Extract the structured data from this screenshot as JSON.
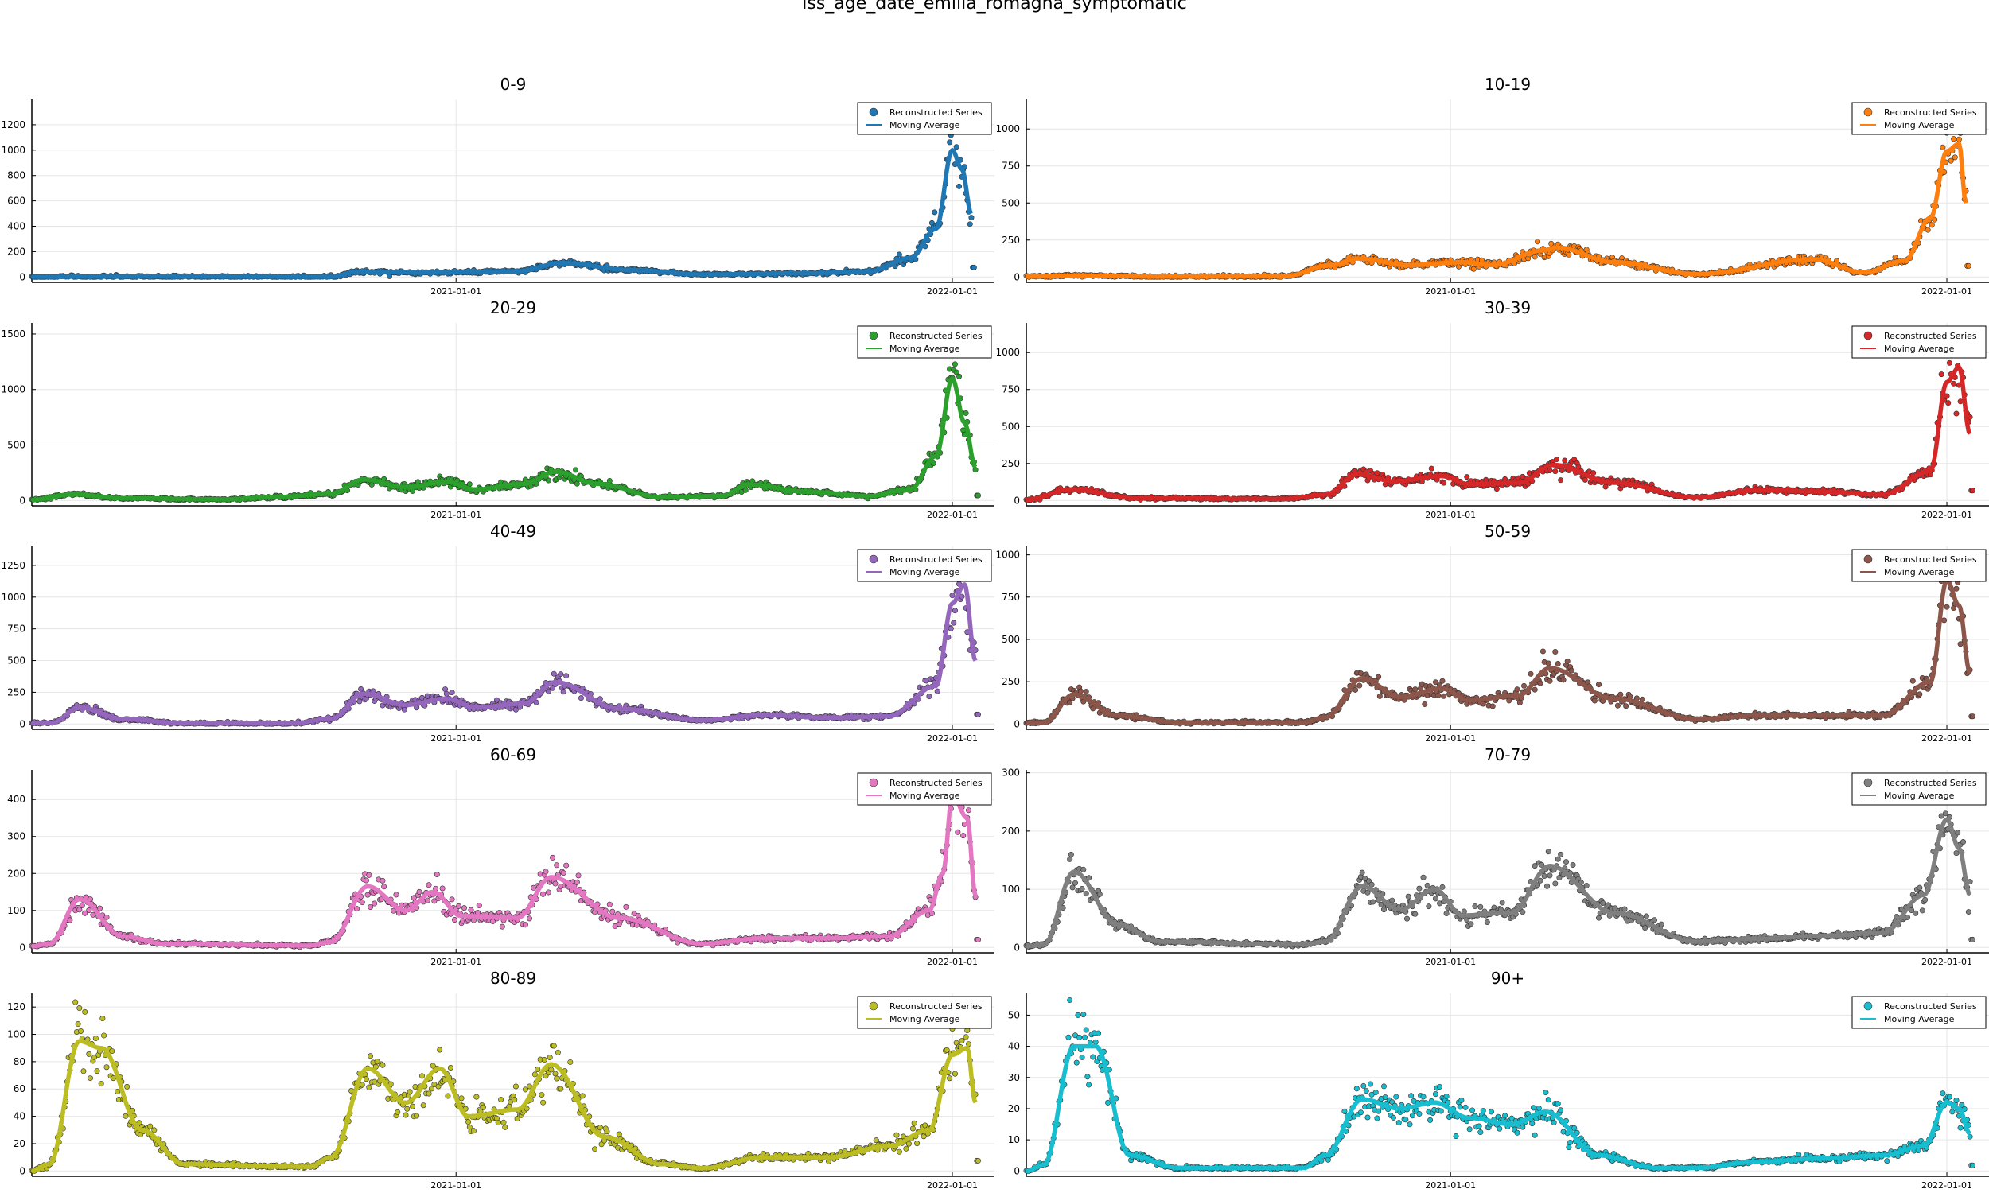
{
  "figure": {
    "title": "iss_age_date_emilia_romagna_symptomatic"
  },
  "chart_data": [
    {
      "type": "scatter+line",
      "title": "0-9",
      "color": "#1f77b4",
      "y_max": 1400,
      "y_ticks": [
        0,
        200,
        400,
        600,
        800,
        1000,
        1200
      ],
      "x_range": [
        "2020-02-24",
        "2022-02-01"
      ],
      "x_ticks": [
        "2021-01-01",
        "2022-01-01"
      ],
      "legend": {
        "position": "top-right",
        "entries": [
          "Reconstructed Series",
          "Moving Average"
        ]
      },
      "series_profile": [
        [
          "2020-02-24",
          2
        ],
        [
          "2020-06-01",
          3
        ],
        [
          "2020-10-01",
          2
        ],
        [
          "2020-10-20",
          40
        ],
        [
          "2020-12-15",
          35
        ],
        [
          "2021-02-15",
          45
        ],
        [
          "2021-03-20",
          110
        ],
        [
          "2021-05-10",
          55
        ],
        [
          "2021-07-01",
          20
        ],
        [
          "2021-09-20",
          30
        ],
        [
          "2021-11-01",
          45
        ],
        [
          "2021-12-01",
          150
        ],
        [
          "2021-12-20",
          380
        ],
        [
          "2022-01-01",
          1000
        ],
        [
          "2022-01-08",
          850
        ],
        [
          "2022-01-15",
          500
        ]
      ]
    },
    {
      "type": "scatter+line",
      "title": "10-19",
      "color": "#ff7f0e",
      "y_max": 1200,
      "y_ticks": [
        0,
        250,
        500,
        750,
        1000
      ],
      "x_range": [
        "2020-02-24",
        "2022-02-01"
      ],
      "x_ticks": [
        "2021-01-01",
        "2022-01-01"
      ],
      "legend": {
        "position": "top-right",
        "entries": [
          "Reconstructed Series",
          "Moving Average"
        ]
      },
      "series_profile": [
        [
          "2020-02-24",
          3
        ],
        [
          "2020-04-01",
          10
        ],
        [
          "2020-06-01",
          3
        ],
        [
          "2020-09-01",
          5
        ],
        [
          "2020-10-05",
          80
        ],
        [
          "2020-10-25",
          125
        ],
        [
          "2020-12-01",
          80
        ],
        [
          "2021-01-10",
          100
        ],
        [
          "2021-02-01",
          80
        ],
        [
          "2021-03-10",
          180
        ],
        [
          "2021-03-20",
          200
        ],
        [
          "2021-05-01",
          100
        ],
        [
          "2021-07-01",
          20
        ],
        [
          "2021-09-25",
          120
        ],
        [
          "2021-11-01",
          30
        ],
        [
          "2021-12-01",
          110
        ],
        [
          "2021-12-20",
          400
        ],
        [
          "2022-01-01",
          850
        ],
        [
          "2022-01-10",
          900
        ],
        [
          "2022-01-15",
          500
        ]
      ]
    },
    {
      "type": "scatter+line",
      "title": "20-29",
      "color": "#2ca02c",
      "y_max": 1600,
      "y_ticks": [
        0,
        500,
        1000,
        1500
      ],
      "x_range": [
        "2020-02-24",
        "2022-02-01"
      ],
      "x_ticks": [
        "2021-01-01",
        "2022-01-01"
      ],
      "legend": {
        "position": "top-right",
        "entries": [
          "Reconstructed Series",
          "Moving Average"
        ]
      },
      "series_profile": [
        [
          "2020-02-24",
          5
        ],
        [
          "2020-03-25",
          55
        ],
        [
          "2020-05-01",
          20
        ],
        [
          "2020-07-15",
          10
        ],
        [
          "2020-08-20",
          30
        ],
        [
          "2020-10-01",
          60
        ],
        [
          "2020-10-25",
          190
        ],
        [
          "2020-11-25",
          120
        ],
        [
          "2020-12-25",
          170
        ],
        [
          "2021-01-15",
          100
        ],
        [
          "2021-02-20",
          150
        ],
        [
          "2021-03-15",
          260
        ],
        [
          "2021-04-15",
          150
        ],
        [
          "2021-06-01",
          30
        ],
        [
          "2021-07-15",
          40
        ],
        [
          "2021-08-05",
          145
        ],
        [
          "2021-09-15",
          80
        ],
        [
          "2021-11-01",
          40
        ],
        [
          "2021-12-01",
          100
        ],
        [
          "2021-12-20",
          400
        ],
        [
          "2022-01-01",
          1100
        ],
        [
          "2022-01-10",
          700
        ],
        [
          "2022-01-18",
          300
        ]
      ]
    },
    {
      "type": "scatter+line",
      "title": "30-39",
      "color": "#d62728",
      "y_max": 1200,
      "y_ticks": [
        0,
        250,
        500,
        750,
        1000
      ],
      "x_range": [
        "2020-02-24",
        "2022-02-01"
      ],
      "x_ticks": [
        "2021-01-01",
        "2022-01-01"
      ],
      "legend": {
        "position": "top-right",
        "entries": [
          "Reconstructed Series",
          "Moving Average"
        ]
      },
      "series_profile": [
        [
          "2020-02-24",
          5
        ],
        [
          "2020-03-28",
          75
        ],
        [
          "2020-05-15",
          15
        ],
        [
          "2020-09-01",
          10
        ],
        [
          "2020-10-01",
          40
        ],
        [
          "2020-10-25",
          180
        ],
        [
          "2020-11-20",
          130
        ],
        [
          "2020-12-25",
          165
        ],
        [
          "2021-01-15",
          110
        ],
        [
          "2021-02-20",
          120
        ],
        [
          "2021-03-18",
          240
        ],
        [
          "2021-05-01",
          120
        ],
        [
          "2021-07-01",
          20
        ],
        [
          "2021-08-15",
          70
        ],
        [
          "2021-10-01",
          60
        ],
        [
          "2021-11-15",
          40
        ],
        [
          "2021-12-20",
          200
        ],
        [
          "2022-01-01",
          800
        ],
        [
          "2022-01-10",
          900
        ],
        [
          "2022-01-18",
          450
        ]
      ]
    },
    {
      "type": "scatter+line",
      "title": "40-49",
      "color": "#9467bd",
      "y_max": 1400,
      "y_ticks": [
        0,
        250,
        500,
        750,
        1000,
        1250
      ],
      "x_range": [
        "2020-02-24",
        "2022-02-01"
      ],
      "x_ticks": [
        "2021-01-01",
        "2022-01-01"
      ],
      "legend": {
        "position": "top-right",
        "entries": [
          "Reconstructed Series",
          "Moving Average"
        ]
      },
      "series_profile": [
        [
          "2020-02-24",
          5
        ],
        [
          "2020-03-10",
          10
        ],
        [
          "2020-03-30",
          130
        ],
        [
          "2020-05-01",
          40
        ],
        [
          "2020-06-15",
          5
        ],
        [
          "2020-09-01",
          5
        ],
        [
          "2020-10-01",
          40
        ],
        [
          "2020-10-25",
          240
        ],
        [
          "2020-11-25",
          150
        ],
        [
          "2020-12-25",
          200
        ],
        [
          "2021-01-15",
          130
        ],
        [
          "2021-02-20",
          160
        ],
        [
          "2021-03-15",
          330
        ],
        [
          "2021-05-01",
          120
        ],
        [
          "2021-07-01",
          30
        ],
        [
          "2021-08-15",
          70
        ],
        [
          "2021-10-01",
          50
        ],
        [
          "2021-11-15",
          60
        ],
        [
          "2021-12-20",
          300
        ],
        [
          "2022-01-01",
          950
        ],
        [
          "2022-01-10",
          1100
        ],
        [
          "2022-01-18",
          500
        ]
      ]
    },
    {
      "type": "scatter+line",
      "title": "50-59",
      "color": "#8c564b",
      "y_max": 1050,
      "y_ticks": [
        0,
        250,
        500,
        750,
        1000
      ],
      "x_range": [
        "2020-02-24",
        "2022-02-01"
      ],
      "x_ticks": [
        "2021-01-01",
        "2022-01-01"
      ],
      "legend": {
        "position": "top-right",
        "entries": [
          "Reconstructed Series",
          "Moving Average"
        ]
      },
      "series_profile": [
        [
          "2020-02-24",
          5
        ],
        [
          "2020-03-08",
          10
        ],
        [
          "2020-03-30",
          175
        ],
        [
          "2020-05-01",
          50
        ],
        [
          "2020-06-15",
          10
        ],
        [
          "2020-09-15",
          10
        ],
        [
          "2020-10-01",
          40
        ],
        [
          "2020-10-28",
          270
        ],
        [
          "2020-11-25",
          160
        ],
        [
          "2020-12-25",
          210
        ],
        [
          "2021-01-15",
          140
        ],
        [
          "2021-02-20",
          170
        ],
        [
          "2021-03-15",
          330
        ],
        [
          "2021-05-01",
          150
        ],
        [
          "2021-07-01",
          30
        ],
        [
          "2021-08-15",
          50
        ],
        [
          "2021-10-01",
          50
        ],
        [
          "2021-11-15",
          50
        ],
        [
          "2021-12-20",
          250
        ],
        [
          "2022-01-01",
          850
        ],
        [
          "2022-01-10",
          700
        ],
        [
          "2022-01-18",
          300
        ]
      ]
    },
    {
      "type": "scatter+line",
      "title": "60-69",
      "color": "#e377c2",
      "y_max": 480,
      "y_ticks": [
        0,
        100,
        200,
        300,
        400
      ],
      "x_range": [
        "2020-02-24",
        "2022-02-01"
      ],
      "x_ticks": [
        "2021-01-01",
        "2022-01-01"
      ],
      "legend": {
        "position": "top-right",
        "entries": [
          "Reconstructed Series",
          "Moving Average"
        ]
      },
      "series_profile": [
        [
          "2020-02-24",
          3
        ],
        [
          "2020-03-08",
          10
        ],
        [
          "2020-03-30",
          130
        ],
        [
          "2020-05-01",
          30
        ],
        [
          "2020-06-01",
          10
        ],
        [
          "2020-09-15",
          5
        ],
        [
          "2020-10-01",
          15
        ],
        [
          "2020-10-28",
          165
        ],
        [
          "2020-11-25",
          100
        ],
        [
          "2020-12-15",
          150
        ],
        [
          "2021-01-05",
          85
        ],
        [
          "2021-02-15",
          80
        ],
        [
          "2021-03-12",
          190
        ],
        [
          "2021-05-01",
          80
        ],
        [
          "2021-07-01",
          10
        ],
        [
          "2021-08-15",
          25
        ],
        [
          "2021-10-01",
          25
        ],
        [
          "2021-11-15",
          30
        ],
        [
          "2021-12-15",
          100
        ],
        [
          "2021-12-25",
          200
        ],
        [
          "2022-01-01",
          410
        ],
        [
          "2022-01-12",
          350
        ],
        [
          "2022-01-18",
          140
        ]
      ]
    },
    {
      "type": "scatter+line",
      "title": "70-79",
      "color": "#7f7f7f",
      "y_max": 305,
      "y_ticks": [
        0,
        100,
        200,
        300
      ],
      "x_range": [
        "2020-02-24",
        "2022-02-01"
      ],
      "x_ticks": [
        "2021-01-01",
        "2022-01-01"
      ],
      "legend": {
        "position": "top-right",
        "entries": [
          "Reconstructed Series",
          "Moving Average"
        ]
      },
      "series_profile": [
        [
          "2020-02-24",
          2
        ],
        [
          "2020-03-08",
          5
        ],
        [
          "2020-03-30",
          130
        ],
        [
          "2020-05-01",
          40
        ],
        [
          "2020-06-01",
          10
        ],
        [
          "2020-09-15",
          5
        ],
        [
          "2020-10-01",
          10
        ],
        [
          "2020-10-28",
          105
        ],
        [
          "2020-11-25",
          65
        ],
        [
          "2020-12-20",
          100
        ],
        [
          "2021-01-10",
          55
        ],
        [
          "2021-02-15",
          60
        ],
        [
          "2021-03-15",
          140
        ],
        [
          "2021-05-01",
          60
        ],
        [
          "2021-07-01",
          10
        ],
        [
          "2021-08-15",
          15
        ],
        [
          "2021-10-01",
          20
        ],
        [
          "2021-11-15",
          25
        ],
        [
          "2021-12-15",
          90
        ],
        [
          "2022-01-01",
          220
        ],
        [
          "2022-01-10",
          170
        ],
        [
          "2022-01-18",
          90
        ]
      ]
    },
    {
      "type": "scatter+line",
      "title": "80-89",
      "color": "#bcbd22",
      "y_max": 130,
      "y_ticks": [
        0,
        20,
        40,
        60,
        80,
        100,
        120
      ],
      "x_range": [
        "2020-02-24",
        "2022-02-01"
      ],
      "x_ticks": [
        "2021-01-01",
        "2022-01-01"
      ],
      "legend": {
        "position": "top-right",
        "entries": [
          "Reconstructed Series",
          "Moving Average"
        ]
      },
      "series_profile": [
        [
          "2020-02-24",
          0
        ],
        [
          "2020-03-08",
          5
        ],
        [
          "2020-03-30",
          95
        ],
        [
          "2020-04-15",
          90
        ],
        [
          "2020-05-15",
          30
        ],
        [
          "2020-06-15",
          5
        ],
        [
          "2020-09-15",
          3
        ],
        [
          "2020-10-01",
          10
        ],
        [
          "2020-10-28",
          75
        ],
        [
          "2020-11-25",
          50
        ],
        [
          "2020-12-20",
          75
        ],
        [
          "2021-01-10",
          40
        ],
        [
          "2021-02-15",
          45
        ],
        [
          "2021-03-12",
          78
        ],
        [
          "2021-04-20",
          25
        ],
        [
          "2021-06-01",
          5
        ],
        [
          "2021-07-01",
          2
        ],
        [
          "2021-08-15",
          10
        ],
        [
          "2021-10-01",
          10
        ],
        [
          "2021-11-15",
          18
        ],
        [
          "2021-12-15",
          30
        ],
        [
          "2022-01-01",
          85
        ],
        [
          "2022-01-12",
          90
        ],
        [
          "2022-01-18",
          50
        ]
      ]
    },
    {
      "type": "scatter+line",
      "title": "90+",
      "color": "#17becf",
      "y_max": 57,
      "y_ticks": [
        0,
        10,
        20,
        30,
        40,
        50
      ],
      "x_range": [
        "2020-02-24",
        "2022-02-01"
      ],
      "x_ticks": [
        "2021-01-01",
        "2022-01-01"
      ],
      "legend": {
        "position": "top-right",
        "entries": [
          "Reconstructed Series",
          "Moving Average"
        ]
      },
      "series_profile": [
        [
          "2020-02-24",
          0
        ],
        [
          "2020-03-08",
          2
        ],
        [
          "2020-03-30",
          40
        ],
        [
          "2020-04-15",
          40
        ],
        [
          "2020-05-10",
          5
        ],
        [
          "2020-06-15",
          1
        ],
        [
          "2020-09-15",
          1
        ],
        [
          "2020-10-01",
          5
        ],
        [
          "2020-10-28",
          23
        ],
        [
          "2020-11-25",
          20
        ],
        [
          "2020-12-20",
          22
        ],
        [
          "2021-01-15",
          17
        ],
        [
          "2021-02-15",
          15
        ],
        [
          "2021-03-12",
          19
        ],
        [
          "2021-04-20",
          5
        ],
        [
          "2021-06-01",
          1
        ],
        [
          "2021-07-01",
          1
        ],
        [
          "2021-08-15",
          3
        ],
        [
          "2021-10-01",
          4
        ],
        [
          "2021-11-15",
          5
        ],
        [
          "2021-12-15",
          8
        ],
        [
          "2022-01-01",
          22
        ],
        [
          "2022-01-10",
          20
        ],
        [
          "2022-01-18",
          12
        ]
      ]
    }
  ]
}
